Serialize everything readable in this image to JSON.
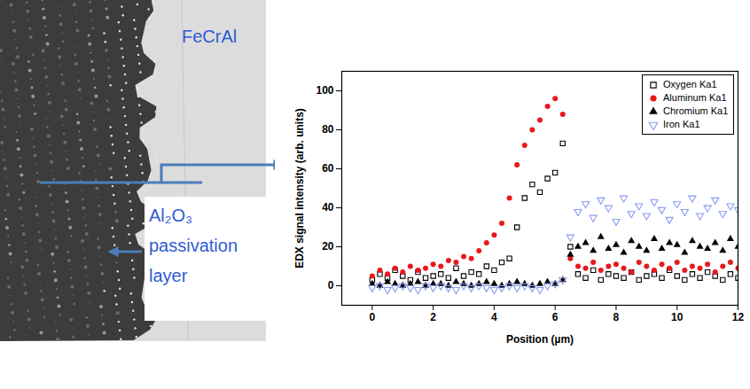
{
  "chart_data": {
    "type": "scatter",
    "x_label": "Position (µm)",
    "y_label": "EDX signal intensity (arb. units)",
    "annotations": [
      "FeCrAl",
      "Al₂O₃ passivation layer"
    ],
    "x": [
      0,
      0.25,
      0.5,
      0.75,
      1,
      1.25,
      1.5,
      1.75,
      2,
      2.25,
      2.5,
      2.75,
      3,
      3.25,
      3.5,
      3.75,
      4,
      4.25,
      4.5,
      4.75,
      5,
      5.25,
      5.5,
      5.75,
      6,
      6.25,
      6.5,
      6.75,
      7,
      7.25,
      7.5,
      7.75,
      8,
      8.25,
      8.5,
      8.75,
      9,
      9.25,
      9.5,
      9.75,
      10,
      10.25,
      10.5,
      10.75,
      11,
      11.25,
      11.5,
      11.75,
      12
    ],
    "series": [
      {
        "name": "Oxygen Ka1",
        "color": "#000000",
        "marker": "square-open",
        "values": [
          3,
          6,
          4,
          8,
          5,
          3,
          7,
          4,
          5,
          6,
          4,
          9,
          5,
          7,
          6,
          10,
          8,
          12,
          14,
          30,
          45,
          52,
          48,
          55,
          58,
          73,
          20,
          6,
          4,
          8,
          3,
          6,
          5,
          4,
          7,
          3,
          5,
          6,
          4,
          8,
          5,
          3,
          6,
          4,
          7,
          5,
          3,
          6,
          4
        ]
      },
      {
        "name": "Aluminum Ka1",
        "color": "#e8191c",
        "marker": "circle",
        "values": [
          5,
          8,
          6,
          9,
          7,
          10,
          8,
          9,
          11,
          10,
          13,
          12,
          15,
          14,
          18,
          22,
          26,
          32,
          45,
          62,
          72,
          80,
          85,
          92,
          96,
          88,
          14,
          10,
          9,
          12,
          8,
          10,
          11,
          9,
          7,
          12,
          10,
          8,
          11,
          9,
          12,
          8,
          10,
          9,
          11,
          7,
          10,
          12,
          9
        ]
      },
      {
        "name": "Chromium Ka1",
        "color": "#000000",
        "marker": "triangle",
        "values": [
          1,
          0,
          2,
          1,
          0,
          1,
          2,
          0,
          1,
          1,
          0,
          2,
          1,
          0,
          1,
          2,
          1,
          0,
          1,
          2,
          1,
          0,
          1,
          2,
          1,
          3,
          16,
          20,
          22,
          18,
          25,
          19,
          21,
          17,
          23,
          20,
          18,
          24,
          19,
          22,
          21,
          17,
          23,
          20,
          19,
          22,
          18,
          24,
          20
        ]
      },
      {
        "name": "Iron Ka1",
        "color": "#8a9cf2",
        "marker": "triangle-down-open",
        "values": [
          -1,
          0,
          -2,
          -1,
          0,
          -1,
          -2,
          0,
          -1,
          0,
          -1,
          -2,
          0,
          -1,
          0,
          -1,
          -2,
          -1,
          0,
          -1,
          0,
          -1,
          -2,
          0,
          1,
          3,
          25,
          38,
          42,
          35,
          44,
          40,
          33,
          45,
          37,
          41,
          36,
          43,
          39,
          34,
          42,
          38,
          45,
          36,
          40,
          44,
          37,
          41,
          39
        ]
      }
    ],
    "xlim": [
      -1,
      12
    ],
    "xticks": [
      0,
      2,
      4,
      6,
      8,
      10,
      12
    ],
    "ylim": [
      -10,
      110
    ],
    "yticks": [
      0,
      20,
      40,
      60,
      80,
      100
    ],
    "legend": "top-right"
  }
}
